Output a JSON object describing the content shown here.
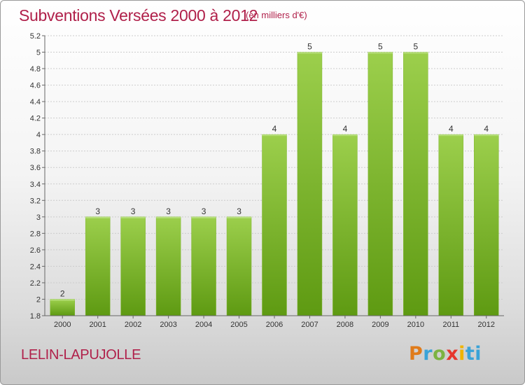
{
  "title": "Subventions Versées 2000 à 2012",
  "unit": "(en milliers d'€)",
  "commune": "LELIN-LAPUJOLLE",
  "logo": {
    "letters": [
      "P",
      "r",
      "o",
      "x",
      "i",
      "ti"
    ]
  },
  "colors": {
    "bar_light": "#9ccf4c",
    "bar_dark": "#5e9a12",
    "title": "#b0204a",
    "grid": "#cccccc"
  },
  "chart_data": {
    "type": "bar",
    "categories": [
      "2000",
      "2001",
      "2002",
      "2003",
      "2004",
      "2005",
      "2006",
      "2007",
      "2008",
      "2009",
      "2010",
      "2011",
      "2012"
    ],
    "values": [
      2,
      3,
      3,
      3,
      3,
      3,
      4,
      5,
      4,
      5,
      5,
      4,
      4
    ],
    "data_labels": [
      "2",
      "3",
      "3",
      "3",
      "3",
      "3",
      "4",
      "5",
      "4",
      "5",
      "5",
      "4",
      "4"
    ],
    "y_ticks": [
      "1.8",
      "2",
      "2.2",
      "2.4",
      "2.6",
      "2.8",
      "3",
      "3.2",
      "3.4",
      "3.6",
      "3.8",
      "4",
      "4.2",
      "4.4",
      "4.6",
      "4.8",
      "5",
      "5.2"
    ],
    "ylim": [
      1.8,
      5.2
    ],
    "grid": true
  }
}
